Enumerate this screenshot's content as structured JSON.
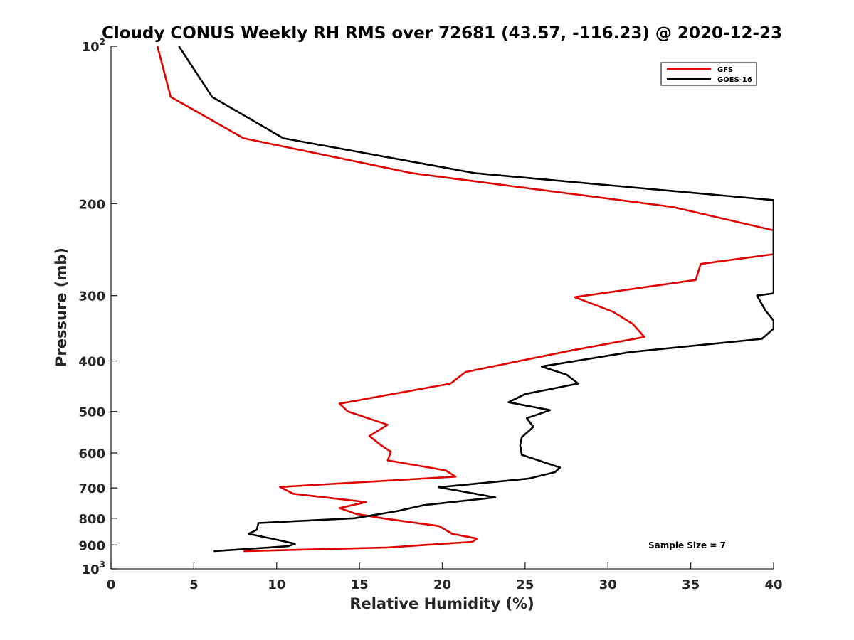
{
  "chart_data": {
    "type": "line",
    "title": "Cloudy CONUS Weekly RH RMS over 72681 (43.57, -116.23) @ 2020-12-23",
    "xlabel": "Relative Humidity (%)",
    "ylabel": "Pressure (mb)",
    "xlim": [
      0,
      40
    ],
    "ylim": [
      100,
      1000
    ],
    "y_scale": "log",
    "y_reversed": true,
    "grid": false,
    "legend_position": "top-right",
    "x_ticks": [
      "0",
      "5",
      "10",
      "15",
      "20",
      "25",
      "30",
      "35",
      "40"
    ],
    "y_ticks": [
      {
        "value": 100,
        "base": "10",
        "exp": "2"
      },
      {
        "value": 200,
        "label": "200"
      },
      {
        "value": 300,
        "label": "300"
      },
      {
        "value": 400,
        "label": "400"
      },
      {
        "value": 500,
        "label": "500"
      },
      {
        "value": 600,
        "label": "600"
      },
      {
        "value": 700,
        "label": "700"
      },
      {
        "value": 800,
        "label": "800"
      },
      {
        "value": 900,
        "label": "900"
      },
      {
        "value": 1000,
        "base": "10",
        "exp": "3"
      }
    ],
    "annotation": "Sample Size = 7",
    "series": [
      {
        "name": "GFS",
        "color": "#e00000",
        "points": [
          [
            2.8,
            100
          ],
          [
            3.6,
            125
          ],
          [
            8.0,
            150
          ],
          [
            18.2,
            175
          ],
          [
            33.9,
            203
          ],
          [
            40.0,
            225
          ],
          [
            40.0,
            250
          ],
          [
            35.6,
            261
          ],
          [
            35.3,
            280
          ],
          [
            28.0,
            302
          ],
          [
            30.3,
            322
          ],
          [
            31.5,
            340
          ],
          [
            32.2,
            360
          ],
          [
            27.6,
            383
          ],
          [
            21.4,
            420
          ],
          [
            20.5,
            442
          ],
          [
            13.8,
            483
          ],
          [
            14.3,
            500
          ],
          [
            16.7,
            530
          ],
          [
            15.6,
            557
          ],
          [
            16.3,
            580
          ],
          [
            16.9,
            597
          ],
          [
            16.7,
            620
          ],
          [
            20.2,
            648
          ],
          [
            20.8,
            666
          ],
          [
            10.2,
            697
          ],
          [
            11.0,
            718
          ],
          [
            15.4,
            745
          ],
          [
            13.8,
            765
          ],
          [
            14.8,
            785
          ],
          [
            16.4,
            800
          ],
          [
            19.8,
            828
          ],
          [
            20.6,
            857
          ],
          [
            22.1,
            875
          ],
          [
            21.8,
            888
          ],
          [
            19.6,
            897
          ],
          [
            16.7,
            910
          ],
          [
            8.0,
            925
          ]
        ]
      },
      {
        "name": "GOES-16",
        "color": "#000000",
        "points": [
          [
            4.1,
            100
          ],
          [
            6.1,
            125
          ],
          [
            10.4,
            150
          ],
          [
            22.0,
            175
          ],
          [
            40.0,
            197
          ],
          [
            40.0,
            297
          ],
          [
            39.0,
            300
          ],
          [
            39.5,
            320
          ],
          [
            40.0,
            335
          ],
          [
            40.0,
            347
          ],
          [
            39.3,
            363
          ],
          [
            31.3,
            385
          ],
          [
            26.0,
            410
          ],
          [
            27.5,
            425
          ],
          [
            28.2,
            442
          ],
          [
            25.0,
            463
          ],
          [
            24.0,
            480
          ],
          [
            26.5,
            497
          ],
          [
            25.1,
            515
          ],
          [
            25.5,
            535
          ],
          [
            24.8,
            560
          ],
          [
            24.7,
            580
          ],
          [
            24.8,
            605
          ],
          [
            27.1,
            640
          ],
          [
            26.8,
            653
          ],
          [
            25.2,
            672
          ],
          [
            19.8,
            698
          ],
          [
            23.2,
            730
          ],
          [
            18.9,
            755
          ],
          [
            17.3,
            775
          ],
          [
            14.7,
            800
          ],
          [
            8.9,
            817
          ],
          [
            8.8,
            842
          ],
          [
            8.3,
            857
          ],
          [
            9.3,
            870
          ],
          [
            11.1,
            895
          ],
          [
            10.7,
            905
          ],
          [
            6.2,
            925
          ]
        ]
      }
    ]
  }
}
